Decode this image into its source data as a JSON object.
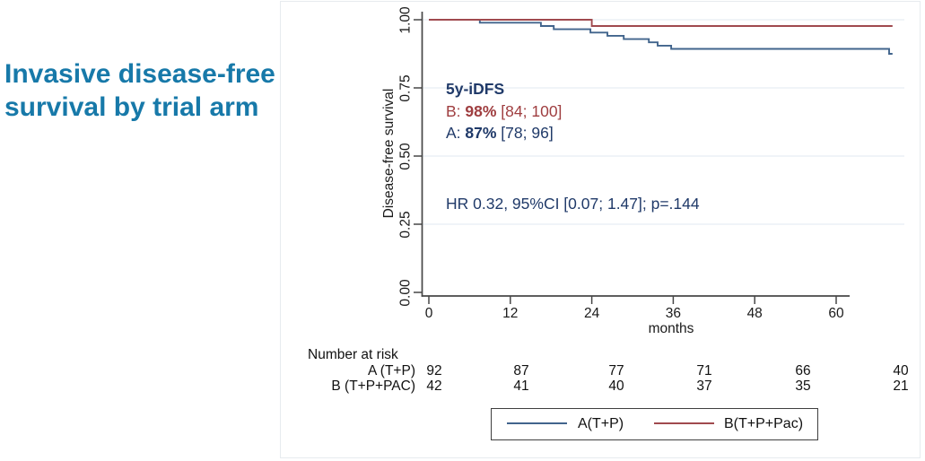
{
  "slide": {
    "title_line1": "Invasive disease-free",
    "title_line2": "survival by trial arm",
    "title_color": "#1779a9"
  },
  "annotations": {
    "heading": "5y-iDFS",
    "arm_b": {
      "prefix": "B: ",
      "value": "98%",
      "ci": " [84; 100]",
      "color": "#9f3e40"
    },
    "arm_a": {
      "prefix": "A: ",
      "value": "87%",
      "ci": " [78; 96]",
      "color": "#203a69"
    },
    "hr_text": "HR 0.32, 95%CI [0.07; 1.47]; p=.144"
  },
  "chart_data": {
    "type": "line",
    "subtype": "kaplan-meier-step",
    "title": "Invasive disease-free survival by trial arm",
    "xlabel": "months",
    "ylabel": "Disease-free survival",
    "x_ticks": [
      0,
      12,
      24,
      36,
      48,
      60
    ],
    "y_ticks": [
      "0.00",
      "0.25",
      "0.50",
      "0.75",
      "1.00"
    ],
    "y_tick_values": [
      0,
      0.25,
      0.5,
      0.75,
      1.0
    ],
    "xlim": [
      0,
      68.3
    ],
    "ylim": [
      0,
      1.0
    ],
    "grid": "horizontal",
    "legend_position": "bottom",
    "series": [
      {
        "name": "A(T+P)",
        "color": "#41648c",
        "points": [
          [
            0,
            1.0
          ],
          [
            7.5,
            0.989
          ],
          [
            16.5,
            0.977
          ],
          [
            18.4,
            0.965
          ],
          [
            23.8,
            0.953
          ],
          [
            26.3,
            0.941
          ],
          [
            28.7,
            0.929
          ],
          [
            32.4,
            0.917
          ],
          [
            33.7,
            0.905
          ],
          [
            35.7,
            0.893
          ],
          [
            67.8,
            0.875
          ]
        ]
      },
      {
        "name": "B(T+P+Pac)",
        "color": "#a04a4e",
        "points": [
          [
            0,
            1.0
          ],
          [
            24.0,
            0.977
          ]
        ]
      }
    ]
  },
  "risk_table": {
    "title": "Number at risk",
    "rows": [
      {
        "label": "A (T+P)",
        "values": [
          "92",
          "87",
          "77",
          "71",
          "66",
          "40"
        ]
      },
      {
        "label": "B (T+P+PAC)",
        "values": [
          "42",
          "41",
          "40",
          "37",
          "35",
          "21"
        ]
      }
    ]
  },
  "legend": {
    "items": [
      {
        "label": "A(T+P)",
        "color": "#41648c"
      },
      {
        "label": "B(T+P+Pac)",
        "color": "#a04a4e"
      }
    ]
  }
}
